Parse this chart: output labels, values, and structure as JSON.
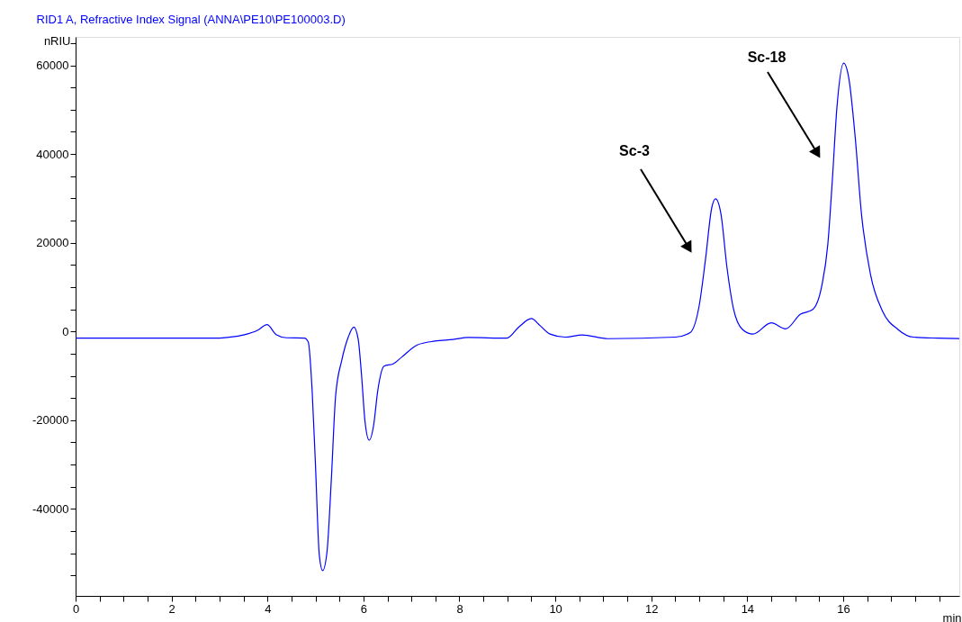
{
  "chart_data": {
    "type": "line",
    "title": "RID1 A, Refractive Index Signal (ANNA\\PE10\\PE100003.D)",
    "xlabel": "min",
    "ylabel": "nRIU",
    "xlim": [
      0,
      18.42
    ],
    "ylim": [
      -59600,
      66400
    ],
    "xticks": [
      0,
      {
        "value": 0.5,
        "label": null
      },
      {
        "value": 1,
        "label": null
      },
      {
        "value": 1.5,
        "label": null
      },
      2,
      {
        "value": 2.5,
        "label": null
      },
      {
        "value": 3,
        "label": null
      },
      {
        "value": 3.5,
        "label": null
      },
      4,
      {
        "value": 4.5,
        "label": null
      },
      {
        "value": 5,
        "label": null
      },
      {
        "value": 5.5,
        "label": null
      },
      6,
      {
        "value": 6.5,
        "label": null
      },
      {
        "value": 7,
        "label": null
      },
      {
        "value": 7.5,
        "label": null
      },
      8,
      {
        "value": 8.5,
        "label": null
      },
      {
        "value": 9,
        "label": null
      },
      {
        "value": 9.5,
        "label": null
      },
      10,
      {
        "value": 10.5,
        "label": null
      },
      {
        "value": 11,
        "label": null
      },
      {
        "value": 11.5,
        "label": null
      },
      12,
      {
        "value": 12.5,
        "label": null
      },
      {
        "value": 13,
        "label": null
      },
      {
        "value": 13.5,
        "label": null
      },
      14,
      {
        "value": 14.5,
        "label": null
      },
      {
        "value": 15,
        "label": null
      },
      {
        "value": 15.5,
        "label": null
      },
      16,
      {
        "value": 16.5,
        "label": null
      },
      {
        "value": 17,
        "label": null
      },
      {
        "value": 17.5,
        "label": null
      },
      {
        "value": 18,
        "label": null
      }
    ],
    "yticks": [
      {
        "value": -55000,
        "label": null
      },
      {
        "value": -50000,
        "label": null
      },
      {
        "value": -45000,
        "label": null
      },
      -40000,
      {
        "value": -35000,
        "label": null
      },
      {
        "value": -30000,
        "label": null
      },
      {
        "value": -25000,
        "label": null
      },
      -20000,
      {
        "value": -15000,
        "label": null
      },
      {
        "value": -10000,
        "label": null
      },
      {
        "value": -5000,
        "label": null
      },
      0,
      {
        "value": 5000,
        "label": null
      },
      {
        "value": 10000,
        "label": null
      },
      {
        "value": 15000,
        "label": null
      },
      20000,
      {
        "value": 25000,
        "label": null
      },
      {
        "value": 30000,
        "label": null
      },
      {
        "value": 35000,
        "label": null
      },
      40000,
      {
        "value": 45000,
        "label": null
      },
      {
        "value": 50000,
        "label": null
      },
      {
        "value": 55000,
        "label": null
      },
      60000,
      {
        "value": 65000,
        "label": null
      }
    ],
    "grid": false,
    "marker": "none",
    "line_style": "solid",
    "annotations": [
      "Sc-3",
      "Sc-18"
    ],
    "series": [
      {
        "color": "#0000ff",
        "x": [
          0,
          1,
          2,
          3,
          3.2,
          3.5,
          3.8,
          3.99,
          4.18,
          4.4,
          4.77,
          4.85,
          4.93,
          5.0,
          5.08,
          5.15,
          5.24,
          5.33,
          5.42,
          5.55,
          5.68,
          5.8,
          5.89,
          5.96,
          6.03,
          6.12,
          6.21,
          6.3,
          6.43,
          6.62,
          6.8,
          7.12,
          7.49,
          7.87,
          8.18,
          8.99,
          9.24,
          9.5,
          9.68,
          9.89,
          10.2,
          10.56,
          11.1,
          12.5,
          12.81,
          13.0,
          13.13,
          13.26,
          13.34,
          13.45,
          13.58,
          13.71,
          13.9,
          14.12,
          14.5,
          14.8,
          15.11,
          15.36,
          15.55,
          15.68,
          15.77,
          15.87,
          16.01,
          16.12,
          16.25,
          16.38,
          16.57,
          16.82,
          17.14,
          17.46,
          17.97,
          18.42
        ],
        "values": [
          -1500,
          -1500,
          -1500,
          -1500,
          -1300,
          -800,
          300,
          1540,
          -690,
          -1420,
          -1500,
          -2370,
          -13200,
          -30100,
          -50400,
          -53900,
          -49700,
          -33500,
          -14500,
          -6400,
          -1360,
          1010,
          -1700,
          -9800,
          -20000,
          -24500,
          -21300,
          -13200,
          -7800,
          -7300,
          -5760,
          -3040,
          -2170,
          -1800,
          -1360,
          -1500,
          1010,
          2900,
          1340,
          -590,
          -1270,
          -790,
          -1620,
          -1270,
          -240,
          5940,
          16300,
          27900,
          29900,
          26600,
          14200,
          5250,
          470,
          -590,
          1970,
          590,
          3900,
          4900,
          10100,
          19700,
          33500,
          50600,
          60500,
          56900,
          43800,
          26600,
          12800,
          4560,
          470,
          -1270,
          -1500,
          -1600
        ]
      }
    ]
  }
}
